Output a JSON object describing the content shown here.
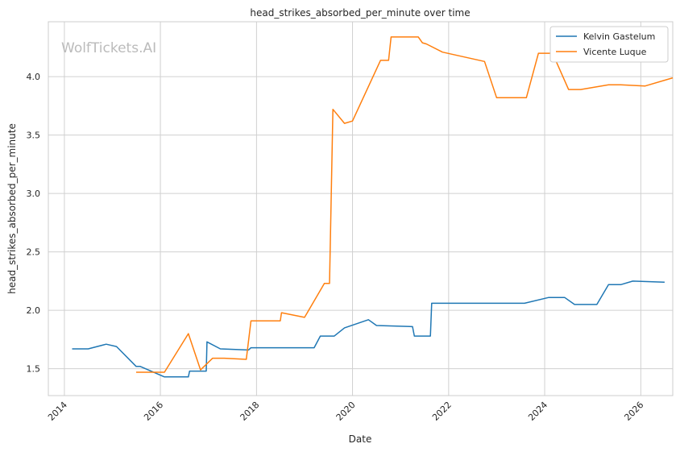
{
  "chart_data": {
    "type": "line",
    "title": "head_strikes_absorbed_per_minute over time",
    "xlabel": "Date",
    "ylabel": "head_strikes_absorbed_per_minute",
    "watermark": "WolfTickets.AI",
    "xlim": [
      "2013-09-01",
      "2026-09-01"
    ],
    "ylim": [
      1.27,
      4.47
    ],
    "x_ticks": [
      "2014",
      "2016",
      "2018",
      "2020",
      "2022",
      "2024",
      "2026"
    ],
    "y_ticks": [
      "1.5",
      "2.0",
      "2.5",
      "3.0",
      "3.5",
      "4.0"
    ],
    "grid": true,
    "legend": "top-right",
    "series": [
      {
        "name": "Kelvin Gastelum",
        "color": "#1f77b4",
        "points": [
          [
            "2014-03-01",
            1.67
          ],
          [
            "2014-07-01",
            1.67
          ],
          [
            "2014-11-15",
            1.71
          ],
          [
            "2015-02-01",
            1.69
          ],
          [
            "2015-07-01",
            1.52
          ],
          [
            "2015-08-01",
            1.52
          ],
          [
            "2016-02-01",
            1.43
          ],
          [
            "2016-08-01",
            1.43
          ],
          [
            "2016-08-10",
            1.48
          ],
          [
            "2016-12-15",
            1.48
          ],
          [
            "2016-12-20",
            1.73
          ],
          [
            "2017-04-01",
            1.67
          ],
          [
            "2017-11-01",
            1.66
          ],
          [
            "2017-11-20",
            1.68
          ],
          [
            "2018-05-01",
            1.68
          ],
          [
            "2019-03-15",
            1.68
          ],
          [
            "2019-05-01",
            1.78
          ],
          [
            "2019-08-15",
            1.78
          ],
          [
            "2019-11-01",
            1.85
          ],
          [
            "2020-05-01",
            1.92
          ],
          [
            "2020-07-01",
            1.87
          ],
          [
            "2021-04-01",
            1.86
          ],
          [
            "2021-04-15",
            1.78
          ],
          [
            "2021-08-15",
            1.78
          ],
          [
            "2021-08-25",
            2.06
          ],
          [
            "2023-08-01",
            2.06
          ],
          [
            "2024-02-01",
            2.11
          ],
          [
            "2024-06-01",
            2.11
          ],
          [
            "2024-08-15",
            2.05
          ],
          [
            "2025-02-01",
            2.05
          ],
          [
            "2025-05-01",
            2.22
          ],
          [
            "2025-08-01",
            2.22
          ],
          [
            "2025-11-01",
            2.25
          ],
          [
            "2026-07-01",
            2.24
          ]
        ]
      },
      {
        "name": "Vicente Luque",
        "color": "#ff7f0e",
        "points": [
          [
            "2015-07-01",
            1.47
          ],
          [
            "2016-02-01",
            1.47
          ],
          [
            "2016-08-01",
            1.8
          ],
          [
            "2016-11-01",
            1.49
          ],
          [
            "2017-02-01",
            1.59
          ],
          [
            "2017-05-01",
            1.59
          ],
          [
            "2017-10-15",
            1.58
          ],
          [
            "2017-11-20",
            1.91
          ],
          [
            "2018-07-01",
            1.91
          ],
          [
            "2018-07-10",
            1.98
          ],
          [
            "2019-01-01",
            1.94
          ],
          [
            "2019-06-01",
            2.23
          ],
          [
            "2019-07-10",
            2.23
          ],
          [
            "2019-08-05",
            3.72
          ],
          [
            "2019-11-01",
            3.6
          ],
          [
            "2020-01-01",
            3.62
          ],
          [
            "2020-08-01",
            4.14
          ],
          [
            "2020-10-01",
            4.14
          ],
          [
            "2020-10-20",
            4.34
          ],
          [
            "2021-05-15",
            4.34
          ],
          [
            "2021-06-15",
            4.29
          ],
          [
            "2021-07-15",
            4.28
          ],
          [
            "2021-11-15",
            4.21
          ],
          [
            "2022-10-01",
            4.13
          ],
          [
            "2023-01-01",
            3.82
          ],
          [
            "2023-08-15",
            3.82
          ],
          [
            "2023-11-15",
            4.2
          ],
          [
            "2024-03-01",
            4.2
          ],
          [
            "2024-07-01",
            3.89
          ],
          [
            "2024-10-01",
            3.89
          ],
          [
            "2025-05-01",
            3.93
          ],
          [
            "2025-08-01",
            3.93
          ],
          [
            "2026-02-01",
            3.92
          ],
          [
            "2026-09-01",
            3.99
          ]
        ]
      }
    ]
  }
}
